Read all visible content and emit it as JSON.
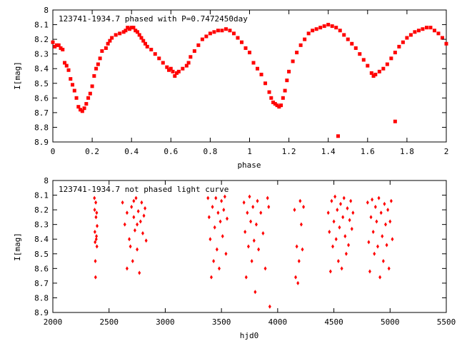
{
  "chart_data": [
    {
      "type": "scatter",
      "title": "123741-1934.7 phased with P=0.7472450day",
      "xlabel": "phase",
      "ylabel": "I[mag]",
      "xlim": [
        0,
        2
      ],
      "ylim": [
        8.9,
        8.0
      ],
      "y_reversed": true,
      "xticks": [
        "0",
        "0.2",
        "0.4",
        "0.6",
        "0.8",
        "1",
        "1.2",
        "1.4",
        "1.6",
        "1.8",
        "2"
      ],
      "yticks": [
        "8",
        "8.1",
        "8.2",
        "8.3",
        "8.4",
        "8.5",
        "8.6",
        "8.7",
        "8.8",
        "8.9"
      ],
      "grid": false,
      "marker_color": "#ff0000",
      "series": [
        {
          "points": [
            [
              0.0,
              8.22
            ],
            [
              0.01,
              8.25
            ],
            [
              0.02,
              8.24
            ],
            [
              0.03,
              8.24
            ],
            [
              0.04,
              8.26
            ],
            [
              0.05,
              8.27
            ],
            [
              0.06,
              8.36
            ],
            [
              0.07,
              8.38
            ],
            [
              0.08,
              8.41
            ],
            [
              0.09,
              8.47
            ],
            [
              0.1,
              8.51
            ],
            [
              0.11,
              8.55
            ],
            [
              0.12,
              8.6
            ],
            [
              0.13,
              8.66
            ],
            [
              0.14,
              8.68
            ],
            [
              0.15,
              8.69
            ],
            [
              0.16,
              8.67
            ],
            [
              0.17,
              8.64
            ],
            [
              0.18,
              8.6
            ],
            [
              0.19,
              8.57
            ],
            [
              0.2,
              8.52
            ],
            [
              0.21,
              8.45
            ],
            [
              0.22,
              8.4
            ],
            [
              0.23,
              8.37
            ],
            [
              0.24,
              8.33
            ],
            [
              0.25,
              8.28
            ],
            [
              0.27,
              8.26
            ],
            [
              0.28,
              8.23
            ],
            [
              0.29,
              8.21
            ],
            [
              0.3,
              8.19
            ],
            [
              0.32,
              8.17
            ],
            [
              0.34,
              8.16
            ],
            [
              0.36,
              8.15
            ],
            [
              0.37,
              8.14
            ],
            [
              0.38,
              8.12
            ],
            [
              0.39,
              8.13
            ],
            [
              0.4,
              8.12
            ],
            [
              0.41,
              8.12
            ],
            [
              0.42,
              8.14
            ],
            [
              0.43,
              8.15
            ],
            [
              0.44,
              8.17
            ],
            [
              0.45,
              8.19
            ],
            [
              0.46,
              8.21
            ],
            [
              0.47,
              8.23
            ],
            [
              0.48,
              8.25
            ],
            [
              0.5,
              8.27
            ],
            [
              0.52,
              8.3
            ],
            [
              0.54,
              8.33
            ],
            [
              0.56,
              8.36
            ],
            [
              0.58,
              8.39
            ],
            [
              0.59,
              8.41
            ],
            [
              0.6,
              8.4
            ],
            [
              0.61,
              8.42
            ],
            [
              0.62,
              8.45
            ],
            [
              0.63,
              8.43
            ],
            [
              0.64,
              8.42
            ],
            [
              0.66,
              8.4
            ],
            [
              0.68,
              8.38
            ],
            [
              0.69,
              8.36
            ],
            [
              0.7,
              8.32
            ],
            [
              0.72,
              8.28
            ],
            [
              0.74,
              8.24
            ],
            [
              0.76,
              8.2
            ],
            [
              0.78,
              8.18
            ],
            [
              0.8,
              8.16
            ],
            [
              0.82,
              8.15
            ],
            [
              0.84,
              8.14
            ],
            [
              0.86,
              8.14
            ],
            [
              0.88,
              8.13
            ],
            [
              0.9,
              8.14
            ],
            [
              0.92,
              8.16
            ],
            [
              0.94,
              8.19
            ],
            [
              0.96,
              8.22
            ],
            [
              0.98,
              8.26
            ],
            [
              1.0,
              8.29
            ],
            [
              1.02,
              8.36
            ],
            [
              1.04,
              8.4
            ],
            [
              1.06,
              8.44
            ],
            [
              1.08,
              8.5
            ],
            [
              1.1,
              8.56
            ],
            [
              1.11,
              8.6
            ],
            [
              1.12,
              8.63
            ],
            [
              1.13,
              8.64
            ],
            [
              1.14,
              8.65
            ],
            [
              1.15,
              8.66
            ],
            [
              1.16,
              8.65
            ],
            [
              1.17,
              8.6
            ],
            [
              1.18,
              8.55
            ],
            [
              1.19,
              8.48
            ],
            [
              1.2,
              8.42
            ],
            [
              1.22,
              8.35
            ],
            [
              1.24,
              8.29
            ],
            [
              1.26,
              8.24
            ],
            [
              1.28,
              8.2
            ],
            [
              1.3,
              8.16
            ],
            [
              1.32,
              8.14
            ],
            [
              1.34,
              8.13
            ],
            [
              1.36,
              8.12
            ],
            [
              1.38,
              8.11
            ],
            [
              1.4,
              8.1
            ],
            [
              1.42,
              8.11
            ],
            [
              1.44,
              8.12
            ],
            [
              1.46,
              8.14
            ],
            [
              1.48,
              8.17
            ],
            [
              1.5,
              8.2
            ],
            [
              1.52,
              8.23
            ],
            [
              1.54,
              8.26
            ],
            [
              1.56,
              8.3
            ],
            [
              1.58,
              8.34
            ],
            [
              1.6,
              8.38
            ],
            [
              1.62,
              8.43
            ],
            [
              1.63,
              8.45
            ],
            [
              1.64,
              8.44
            ],
            [
              1.66,
              8.42
            ],
            [
              1.68,
              8.4
            ],
            [
              1.7,
              8.37
            ],
            [
              1.72,
              8.33
            ],
            [
              1.74,
              8.29
            ],
            [
              1.76,
              8.25
            ],
            [
              1.78,
              8.22
            ],
            [
              1.8,
              8.19
            ],
            [
              1.82,
              8.17
            ],
            [
              1.84,
              8.15
            ],
            [
              1.86,
              8.14
            ],
            [
              1.88,
              8.13
            ],
            [
              1.9,
              8.12
            ],
            [
              1.92,
              8.12
            ],
            [
              1.94,
              8.14
            ],
            [
              1.96,
              8.16
            ],
            [
              1.98,
              8.19
            ],
            [
              2.0,
              8.23
            ],
            [
              1.45,
              8.86
            ],
            [
              1.74,
              8.76
            ]
          ]
        }
      ]
    },
    {
      "type": "scatter",
      "title": "123741-1934.7 not phased light curve",
      "xlabel": "hjd0",
      "ylabel": "I[mag]",
      "xlim": [
        2000,
        5500
      ],
      "ylim": [
        8.9,
        8.0
      ],
      "y_reversed": true,
      "xticks": [
        "2000",
        "2500",
        "3000",
        "3500",
        "4000",
        "4500",
        "5000",
        "5500"
      ],
      "yticks": [
        "8",
        "8.1",
        "8.2",
        "8.3",
        "8.4",
        "8.5",
        "8.6",
        "8.7",
        "8.8",
        "8.9"
      ],
      "grid": false,
      "marker_color": "#ff0000",
      "series": [
        {
          "points": [
            [
              2370,
              8.12
            ],
            [
              2372,
              8.2
            ],
            [
              2374,
              8.35
            ],
            [
              2376,
              8.42
            ],
            [
              2378,
              8.55
            ],
            [
              2380,
              8.66
            ],
            [
              2382,
              8.15
            ],
            [
              2384,
              8.25
            ],
            [
              2386,
              8.4
            ],
            [
              2388,
              8.38
            ],
            [
              2390,
              8.22
            ],
            [
              2392,
              8.45
            ],
            [
              2394,
              8.31
            ],
            [
              2620,
              8.15
            ],
            [
              2640,
              8.3
            ],
            [
              2660,
              8.22
            ],
            [
              2680,
              8.4
            ],
            [
              2700,
              8.18
            ],
            [
              2710,
              8.55
            ],
            [
              2720,
              8.25
            ],
            [
              2730,
              8.34
            ],
            [
              2740,
              8.12
            ],
            [
              2750,
              8.47
            ],
            [
              2760,
              8.21
            ],
            [
              2770,
              8.63
            ],
            [
              2780,
              8.28
            ],
            [
              2790,
              8.15
            ],
            [
              2800,
              8.36
            ],
            [
              2810,
              8.24
            ],
            [
              2820,
              8.19
            ],
            [
              2830,
              8.41
            ],
            [
              2660,
              8.6
            ],
            [
              2690,
              8.45
            ],
            [
              2720,
              8.14
            ],
            [
              2750,
              8.3
            ],
            [
              3380,
              8.12
            ],
            [
              3390,
              8.25
            ],
            [
              3400,
              8.4
            ],
            [
              3410,
              8.66
            ],
            [
              3420,
              8.18
            ],
            [
              3430,
              8.55
            ],
            [
              3440,
              8.32
            ],
            [
              3450,
              8.12
            ],
            [
              3460,
              8.47
            ],
            [
              3470,
              8.22
            ],
            [
              3480,
              8.6
            ],
            [
              3490,
              8.28
            ],
            [
              3500,
              8.14
            ],
            [
              3510,
              8.38
            ],
            [
              3520,
              8.2
            ],
            [
              3530,
              8.11
            ],
            [
              3540,
              8.5
            ],
            [
              3550,
              8.26
            ],
            [
              3700,
              8.15
            ],
            [
              3710,
              8.35
            ],
            [
              3720,
              8.66
            ],
            [
              3730,
              8.22
            ],
            [
              3740,
              8.45
            ],
            [
              3750,
              8.11
            ],
            [
              3760,
              8.28
            ],
            [
              3770,
              8.55
            ],
            [
              3780,
              8.18
            ],
            [
              3790,
              8.41
            ],
            [
              3800,
              8.76
            ],
            [
              3810,
              8.3
            ],
            [
              3820,
              8.14
            ],
            [
              3830,
              8.47
            ],
            [
              3850,
              8.22
            ],
            [
              3870,
              8.36
            ],
            [
              3890,
              8.6
            ],
            [
              3910,
              8.12
            ],
            [
              3930,
              8.86
            ],
            [
              3920,
              8.18
            ],
            [
              4150,
              8.2
            ],
            [
              4160,
              8.66
            ],
            [
              4170,
              8.45
            ],
            [
              4180,
              8.7
            ],
            [
              4190,
              8.55
            ],
            [
              4200,
              8.14
            ],
            [
              4210,
              8.3
            ],
            [
              4220,
              8.47
            ],
            [
              4230,
              8.18
            ],
            [
              4450,
              8.22
            ],
            [
              4460,
              8.35
            ],
            [
              4470,
              8.62
            ],
            [
              4480,
              8.14
            ],
            [
              4490,
              8.45
            ],
            [
              4500,
              8.28
            ],
            [
              4510,
              8.11
            ],
            [
              4520,
              8.4
            ],
            [
              4530,
              8.2
            ],
            [
              4540,
              8.55
            ],
            [
              4550,
              8.32
            ],
            [
              4560,
              8.16
            ],
            [
              4570,
              8.6
            ],
            [
              4580,
              8.25
            ],
            [
              4590,
              8.12
            ],
            [
              4600,
              8.38
            ],
            [
              4610,
              8.5
            ],
            [
              4620,
              8.19
            ],
            [
              4630,
              8.44
            ],
            [
              4640,
              8.27
            ],
            [
              4650,
              8.14
            ],
            [
              4660,
              8.33
            ],
            [
              4670,
              8.22
            ],
            [
              4800,
              8.15
            ],
            [
              4810,
              8.42
            ],
            [
              4820,
              8.62
            ],
            [
              4830,
              8.25
            ],
            [
              4840,
              8.13
            ],
            [
              4850,
              8.35
            ],
            [
              4860,
              8.5
            ],
            [
              4870,
              8.18
            ],
            [
              4880,
              8.28
            ],
            [
              4890,
              8.45
            ],
            [
              4900,
              8.12
            ],
            [
              4910,
              8.66
            ],
            [
              4920,
              8.22
            ],
            [
              4930,
              8.38
            ],
            [
              4940,
              8.55
            ],
            [
              4950,
              8.16
            ],
            [
              4960,
              8.3
            ],
            [
              4970,
              8.44
            ],
            [
              4980,
              8.2
            ],
            [
              4990,
              8.6
            ],
            [
              5000,
              8.28
            ],
            [
              5010,
              8.14
            ],
            [
              5020,
              8.4
            ]
          ]
        }
      ]
    }
  ]
}
